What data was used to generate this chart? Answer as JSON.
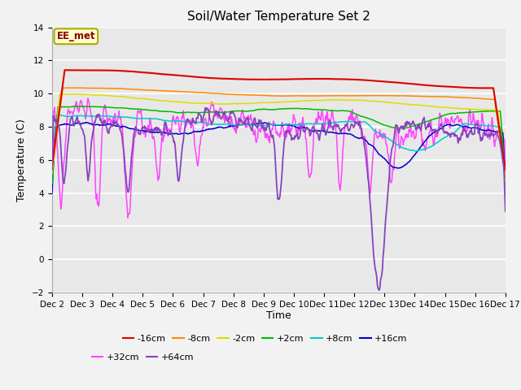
{
  "title": "Soil/Water Temperature Set 2",
  "xlabel": "Time",
  "ylabel": "Temperature (C)",
  "annotation": "EE_met",
  "ylim": [
    -2,
    14
  ],
  "yticks": [
    -2,
    0,
    2,
    4,
    6,
    8,
    10,
    12,
    14
  ],
  "x_labels": [
    "Dec 2",
    "Dec 3",
    "Dec 4",
    "Dec 5",
    "Dec 6",
    "Dec 7",
    "Dec 8",
    "Dec 9",
    "Dec 10",
    "Dec 11",
    "Dec 12",
    "Dec 13",
    "Dec 14",
    "Dec 15",
    "Dec 16",
    "Dec 17"
  ],
  "series_colors": {
    "-16cm": "#dd0000",
    "-8cm": "#ff8800",
    "-2cm": "#dddd00",
    "+2cm": "#00bb00",
    "+8cm": "#00cccc",
    "+16cm": "#0000cc",
    "+32cm": "#ff44ff",
    "+64cm": "#8844bb"
  },
  "fig_bg": "#f2f2f2",
  "ax_bg": "#e8e8e8",
  "grid_color": "#ffffff"
}
